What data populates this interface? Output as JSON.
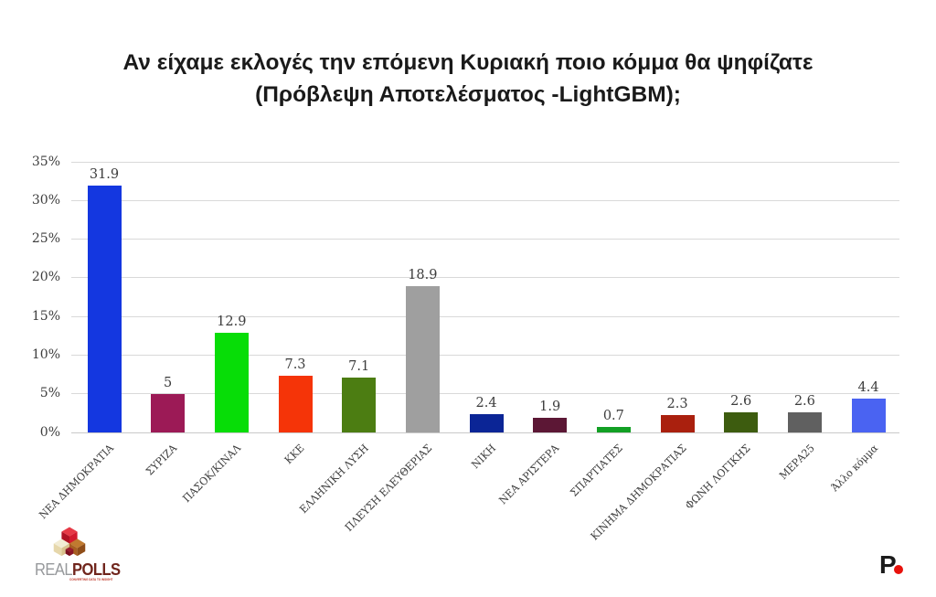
{
  "title": {
    "line1": "Αν είχαμε εκλογές την επόμενη Κυριακή ποιο κόμμα θα ψηφίζατε",
    "line2": "(Πρόβλεψη Αποτελέσματος -LightGBM);"
  },
  "chart_data": {
    "type": "bar",
    "categories": [
      "ΝΕΑ ΔΗΜΟΚΡΑΤΙΑ",
      "ΣΥΡΙΖΑ",
      "ΠΑΣΟΚ/ΚΙΝΑΛ",
      "ΚΚΕ",
      "ΕΛΛΗΝΙΚΗ ΛΥΣΗ",
      "ΠΛΕΥΣΗ ΕΛΕΥΘΕΡΙΑΣ",
      "ΝΙΚΗ",
      "ΝΕΑ ΑΡΙΣΤΕΡΑ",
      "ΣΠΑΡΤΙΑΤΕΣ",
      "ΚΙΝΗΜΑ ΔΗΜΟΚΡΑΤΙΑΣ",
      "ΦΩΝΗ ΛΟΓΙΚΗΣ",
      "ΜΕΡΑ25",
      "Άλλο κόμμα"
    ],
    "values": [
      31.9,
      5,
      12.9,
      7.3,
      7.1,
      18.9,
      2.4,
      1.9,
      0.7,
      2.3,
      2.6,
      2.6,
      4.4
    ],
    "value_labels": [
      "31.9",
      "5",
      "12.9",
      "7.3",
      "7.1",
      "18.9",
      "2.4",
      "1.9",
      "0.7",
      "2.3",
      "2.6",
      "2.6",
      "4.4"
    ],
    "bar_colors": [
      "#1437e0",
      "#9c1a56",
      "#07dd07",
      "#f53408",
      "#4c7d12",
      "#9f9f9f",
      "#0b2596",
      "#5c1735",
      "#12a024",
      "#aa200e",
      "#3d5c0f",
      "#606060",
      "#4a63f2"
    ],
    "y_ticks": [
      "0%",
      "5%",
      "10%",
      "15%",
      "20%",
      "25%",
      "30%",
      "35%"
    ],
    "ylim": [
      0,
      35
    ],
    "grid": true,
    "legend_position": "none",
    "title": "Αν είχαμε εκλογές την επόμενη Κυριακή ποιο κόμμα θα ψηφίζατε (Πρόβλεψη Αποτελέσματος -LightGBM);"
  },
  "footer": {
    "realpolls_real": "REAL",
    "realpolls_polls": "POLLS",
    "realpolls_tagline": "CONVERTING DATA TO INSIGHT",
    "p_logo_letter": "P"
  }
}
